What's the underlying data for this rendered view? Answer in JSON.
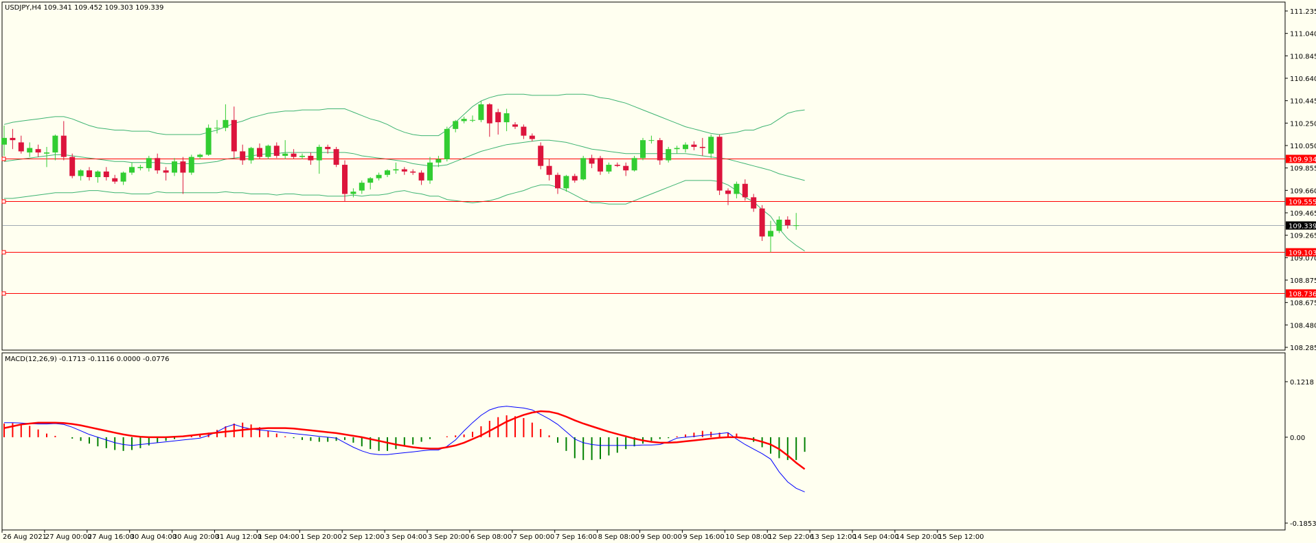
{
  "main_panel": {
    "header": "USDJPY,H4  109.341 109.452 109.303 109.339"
  },
  "macd_panel": {
    "header": "MACD(12,26,9) -0.1713 -0.1116 0.0000 -0.0776"
  },
  "price_axis_labels": [
    "111.235",
    "111.040",
    "110.845",
    "110.640",
    "110.445",
    "110.250",
    "110.050",
    "109.855",
    "109.660",
    "109.465",
    "109.265",
    "109.070",
    "108.875",
    "108.675",
    "108.480",
    "108.285"
  ],
  "macd_axis_labels": [
    "0.1218",
    "0.00",
    "-0.1853"
  ],
  "horizontal_levels": [
    {
      "label": "109.934",
      "value": 109.934,
      "color": "#ff0000"
    },
    {
      "label": "109.555",
      "value": 109.555,
      "color": "#ff0000"
    },
    {
      "label": "109.103",
      "value": 109.103,
      "color": "#ff0000"
    },
    {
      "label": "108.736",
      "value": 108.736,
      "color": "#ff0000"
    }
  ],
  "current_price": {
    "label": "109.339",
    "value": 109.339
  },
  "time_labels": [
    "26 Aug 2021",
    "27 Aug 00:00",
    "27 Aug 16:00",
    "30 Aug 04:00",
    "30 Aug 20:00",
    "31 Aug 12:00",
    "1 Sep 04:00",
    "1 Sep 20:00",
    "2 Sep 12:00",
    "3 Sep 04:00",
    "3 Sep 20:00",
    "6 Sep 08:00",
    "7 Sep 00:00",
    "7 Sep 16:00",
    "8 Sep 08:00",
    "9 Sep 00:00",
    "9 Sep 16:00",
    "10 Sep 08:00",
    "12 Sep 22:06",
    "13 Sep 12:00",
    "14 Sep 04:00",
    "14 Sep 20:00",
    "15 Sep 12:00"
  ],
  "colors": {
    "background": "#fffff0",
    "bull": "#32cd32",
    "bear": "#dc143c",
    "bands": "#3cb371",
    "macd_line": "#0000ff",
    "signal_line": "#ff0000",
    "hist_pos": "#ff0000",
    "hist_neg": "#008000",
    "level": "#ff0000"
  },
  "chart_data": {
    "type": "candlestick",
    "symbol": "USDJPY",
    "timeframe": "H4",
    "price_range": [
      108.25,
      111.29
    ],
    "macd_range": [
      -0.1853,
      0.1218
    ],
    "candles": [
      {
        "o": 110.06,
        "h": 110.23,
        "l": 109.96,
        "c": 110.12
      },
      {
        "o": 110.12,
        "h": 110.2,
        "l": 110.02,
        "c": 110.1
      },
      {
        "o": 110.08,
        "h": 110.14,
        "l": 109.98,
        "c": 110.0
      },
      {
        "o": 109.99,
        "h": 110.08,
        "l": 109.95,
        "c": 110.03
      },
      {
        "o": 110.02,
        "h": 110.06,
        "l": 109.95,
        "c": 109.99
      },
      {
        "o": 109.98,
        "h": 110.04,
        "l": 109.86,
        "c": 109.99
      },
      {
        "o": 109.99,
        "h": 110.15,
        "l": 109.92,
        "c": 110.14
      },
      {
        "o": 110.14,
        "h": 110.27,
        "l": 109.92,
        "c": 109.95
      },
      {
        "o": 109.95,
        "h": 109.98,
        "l": 109.76,
        "c": 109.78
      },
      {
        "o": 109.78,
        "h": 109.84,
        "l": 109.74,
        "c": 109.83
      },
      {
        "o": 109.83,
        "h": 109.86,
        "l": 109.74,
        "c": 109.77
      },
      {
        "o": 109.77,
        "h": 109.83,
        "l": 109.72,
        "c": 109.82
      },
      {
        "o": 109.82,
        "h": 109.86,
        "l": 109.74,
        "c": 109.77
      },
      {
        "o": 109.76,
        "h": 109.79,
        "l": 109.71,
        "c": 109.73
      },
      {
        "o": 109.73,
        "h": 109.82,
        "l": 109.7,
        "c": 109.81
      },
      {
        "o": 109.81,
        "h": 109.9,
        "l": 109.79,
        "c": 109.86
      },
      {
        "o": 109.85,
        "h": 109.88,
        "l": 109.83,
        "c": 109.86
      },
      {
        "o": 109.85,
        "h": 109.96,
        "l": 109.82,
        "c": 109.94
      },
      {
        "o": 109.94,
        "h": 109.98,
        "l": 109.8,
        "c": 109.83
      },
      {
        "o": 109.83,
        "h": 109.86,
        "l": 109.74,
        "c": 109.81
      },
      {
        "o": 109.81,
        "h": 109.94,
        "l": 109.78,
        "c": 109.91
      },
      {
        "o": 109.91,
        "h": 109.95,
        "l": 109.62,
        "c": 109.81
      },
      {
        "o": 109.81,
        "h": 109.97,
        "l": 109.79,
        "c": 109.95
      },
      {
        "o": 109.95,
        "h": 109.98,
        "l": 109.93,
        "c": 109.97
      },
      {
        "o": 109.97,
        "h": 110.24,
        "l": 109.96,
        "c": 110.21
      },
      {
        "o": 110.21,
        "h": 110.28,
        "l": 110.16,
        "c": 110.21
      },
      {
        "o": 110.21,
        "h": 110.42,
        "l": 110.18,
        "c": 110.28
      },
      {
        "o": 110.28,
        "h": 110.4,
        "l": 109.93,
        "c": 110.0
      },
      {
        "o": 110.0,
        "h": 110.06,
        "l": 109.88,
        "c": 109.92
      },
      {
        "o": 109.92,
        "h": 110.04,
        "l": 109.89,
        "c": 110.03
      },
      {
        "o": 110.03,
        "h": 110.07,
        "l": 109.93,
        "c": 109.95
      },
      {
        "o": 109.95,
        "h": 110.06,
        "l": 109.93,
        "c": 110.05
      },
      {
        "o": 110.05,
        "h": 110.08,
        "l": 109.94,
        "c": 109.96
      },
      {
        "o": 109.96,
        "h": 110.1,
        "l": 109.93,
        "c": 109.98
      },
      {
        "o": 109.98,
        "h": 110.02,
        "l": 109.93,
        "c": 109.95
      },
      {
        "o": 109.95,
        "h": 109.98,
        "l": 109.93,
        "c": 109.96
      },
      {
        "o": 109.96,
        "h": 109.99,
        "l": 109.88,
        "c": 109.92
      },
      {
        "o": 109.92,
        "h": 110.06,
        "l": 109.8,
        "c": 110.04
      },
      {
        "o": 110.04,
        "h": 110.06,
        "l": 109.98,
        "c": 110.02
      },
      {
        "o": 110.02,
        "h": 110.04,
        "l": 109.86,
        "c": 109.88
      },
      {
        "o": 109.88,
        "h": 109.92,
        "l": 109.55,
        "c": 109.62
      },
      {
        "o": 109.62,
        "h": 109.67,
        "l": 109.59,
        "c": 109.64
      },
      {
        "o": 109.65,
        "h": 109.74,
        "l": 109.62,
        "c": 109.72
      },
      {
        "o": 109.72,
        "h": 109.77,
        "l": 109.66,
        "c": 109.76
      },
      {
        "o": 109.76,
        "h": 109.81,
        "l": 109.74,
        "c": 109.79
      },
      {
        "o": 109.79,
        "h": 109.84,
        "l": 109.77,
        "c": 109.83
      },
      {
        "o": 109.83,
        "h": 109.9,
        "l": 109.8,
        "c": 109.84
      },
      {
        "o": 109.84,
        "h": 109.86,
        "l": 109.79,
        "c": 109.82
      },
      {
        "o": 109.82,
        "h": 109.84,
        "l": 109.79,
        "c": 109.81
      },
      {
        "o": 109.81,
        "h": 109.83,
        "l": 109.7,
        "c": 109.74
      },
      {
        "o": 109.74,
        "h": 109.95,
        "l": 109.71,
        "c": 109.9
      },
      {
        "o": 109.9,
        "h": 109.96,
        "l": 109.86,
        "c": 109.93
      },
      {
        "o": 109.93,
        "h": 110.22,
        "l": 109.91,
        "c": 110.2
      },
      {
        "o": 110.2,
        "h": 110.28,
        "l": 110.17,
        "c": 110.27
      },
      {
        "o": 110.27,
        "h": 110.31,
        "l": 110.25,
        "c": 110.29
      },
      {
        "o": 110.28,
        "h": 110.32,
        "l": 110.26,
        "c": 110.28
      },
      {
        "o": 110.28,
        "h": 110.45,
        "l": 110.26,
        "c": 110.42
      },
      {
        "o": 110.42,
        "h": 110.43,
        "l": 110.13,
        "c": 110.25
      },
      {
        "o": 110.35,
        "h": 110.38,
        "l": 110.15,
        "c": 110.26
      },
      {
        "o": 110.26,
        "h": 110.38,
        "l": 110.18,
        "c": 110.34
      },
      {
        "o": 110.24,
        "h": 110.26,
        "l": 110.2,
        "c": 110.22
      },
      {
        "o": 110.22,
        "h": 110.24,
        "l": 110.11,
        "c": 110.14
      },
      {
        "o": 110.14,
        "h": 110.16,
        "l": 110.09,
        "c": 110.11
      },
      {
        "o": 110.05,
        "h": 110.08,
        "l": 109.84,
        "c": 109.87
      },
      {
        "o": 109.87,
        "h": 109.93,
        "l": 109.74,
        "c": 109.79
      },
      {
        "o": 109.79,
        "h": 109.81,
        "l": 109.62,
        "c": 109.67
      },
      {
        "o": 109.67,
        "h": 109.79,
        "l": 109.64,
        "c": 109.78
      },
      {
        "o": 109.78,
        "h": 109.8,
        "l": 109.72,
        "c": 109.74
      },
      {
        "o": 109.75,
        "h": 109.96,
        "l": 109.74,
        "c": 109.94
      },
      {
        "o": 109.94,
        "h": 109.97,
        "l": 109.85,
        "c": 109.89
      },
      {
        "o": 109.94,
        "h": 109.96,
        "l": 109.79,
        "c": 109.82
      },
      {
        "o": 109.82,
        "h": 109.9,
        "l": 109.8,
        "c": 109.88
      },
      {
        "o": 109.88,
        "h": 109.9,
        "l": 109.86,
        "c": 109.87
      },
      {
        "o": 109.87,
        "h": 109.9,
        "l": 109.78,
        "c": 109.83
      },
      {
        "o": 109.83,
        "h": 109.96,
        "l": 109.82,
        "c": 109.94
      },
      {
        "o": 109.94,
        "h": 110.12,
        "l": 109.92,
        "c": 110.1
      },
      {
        "o": 110.1,
        "h": 110.14,
        "l": 110.07,
        "c": 110.1
      },
      {
        "o": 110.1,
        "h": 110.12,
        "l": 109.88,
        "c": 109.92
      },
      {
        "o": 109.92,
        "h": 110.04,
        "l": 109.9,
        "c": 110.02
      },
      {
        "o": 110.02,
        "h": 110.05,
        "l": 109.98,
        "c": 110.03
      },
      {
        "o": 110.02,
        "h": 110.08,
        "l": 109.99,
        "c": 110.06
      },
      {
        "o": 110.06,
        "h": 110.09,
        "l": 110.01,
        "c": 110.04
      },
      {
        "o": 110.04,
        "h": 110.12,
        "l": 109.96,
        "c": 110.03
      },
      {
        "o": 109.98,
        "h": 110.15,
        "l": 109.94,
        "c": 110.13
      },
      {
        "o": 110.13,
        "h": 110.15,
        "l": 109.61,
        "c": 109.65
      },
      {
        "o": 109.65,
        "h": 109.67,
        "l": 109.52,
        "c": 109.62
      },
      {
        "o": 109.62,
        "h": 109.73,
        "l": 109.58,
        "c": 109.71
      },
      {
        "o": 109.71,
        "h": 109.75,
        "l": 109.56,
        "c": 109.59
      },
      {
        "o": 109.59,
        "h": 109.62,
        "l": 109.46,
        "c": 109.49
      },
      {
        "o": 109.49,
        "h": 109.52,
        "l": 109.2,
        "c": 109.24
      },
      {
        "o": 109.24,
        "h": 109.38,
        "l": 109.1,
        "c": 109.29
      },
      {
        "o": 109.29,
        "h": 109.42,
        "l": 109.27,
        "c": 109.39
      },
      {
        "o": 109.39,
        "h": 109.42,
        "l": 109.31,
        "c": 109.34
      },
      {
        "o": 109.34,
        "h": 109.45,
        "l": 109.3,
        "c": 109.34
      }
    ],
    "bands_upper": [
      110.24,
      110.26,
      110.27,
      110.28,
      110.29,
      110.3,
      110.31,
      110.31,
      110.29,
      110.26,
      110.23,
      110.21,
      110.2,
      110.19,
      110.19,
      110.18,
      110.18,
      110.18,
      110.16,
      110.15,
      110.15,
      110.15,
      110.15,
      110.15,
      110.17,
      110.19,
      110.22,
      110.25,
      110.27,
      110.3,
      110.32,
      110.34,
      110.35,
      110.36,
      110.36,
      110.37,
      110.37,
      110.37,
      110.38,
      110.38,
      110.38,
      110.35,
      110.32,
      110.29,
      110.27,
      110.24,
      110.2,
      110.17,
      110.15,
      110.14,
      110.14,
      110.14,
      110.19,
      110.26,
      110.33,
      110.4,
      110.45,
      110.48,
      110.5,
      110.51,
      110.51,
      110.51,
      110.5,
      110.5,
      110.5,
      110.5,
      110.51,
      110.51,
      110.51,
      110.5,
      110.48,
      110.47,
      110.45,
      110.43,
      110.4,
      110.37,
      110.34,
      110.31,
      110.28,
      110.25,
      110.22,
      110.2,
      110.18,
      110.16,
      110.15,
      110.16,
      110.17,
      110.19,
      110.19,
      110.22,
      110.24,
      110.29,
      110.34,
      110.36,
      110.37
    ],
    "bands_mid": [
      109.91,
      109.92,
      109.93,
      109.94,
      109.95,
      109.96,
      109.97,
      109.97,
      109.96,
      109.95,
      109.94,
      109.93,
      109.92,
      109.91,
      109.91,
      109.9,
      109.9,
      109.9,
      109.9,
      109.89,
      109.89,
      109.89,
      109.89,
      109.89,
      109.9,
      109.91,
      109.93,
      109.94,
      109.95,
      109.96,
      109.97,
      109.98,
      109.98,
      109.99,
      109.99,
      109.99,
      109.99,
      109.99,
      109.99,
      109.99,
      109.99,
      109.98,
      109.96,
      109.95,
      109.94,
      109.93,
      109.92,
      109.91,
      109.89,
      109.88,
      109.87,
      109.87,
      109.88,
      109.91,
      109.94,
      109.97,
      110.0,
      110.02,
      110.04,
      110.06,
      110.07,
      110.08,
      110.09,
      110.1,
      110.1,
      110.09,
      110.08,
      110.06,
      110.04,
      110.02,
      110.01,
      110.0,
      109.99,
      109.98,
      109.98,
      109.98,
      109.98,
      109.98,
      109.98,
      109.98,
      109.98,
      109.97,
      109.96,
      109.95,
      109.94,
      109.93,
      109.91,
      109.89,
      109.87,
      109.85,
      109.83,
      109.8,
      109.78,
      109.76,
      109.74
    ],
    "bands_lower": [
      109.58,
      109.58,
      109.59,
      109.6,
      109.61,
      109.62,
      109.63,
      109.63,
      109.63,
      109.64,
      109.65,
      109.65,
      109.64,
      109.63,
      109.63,
      109.62,
      109.62,
      109.62,
      109.64,
      109.63,
      109.63,
      109.63,
      109.63,
      109.63,
      109.63,
      109.63,
      109.64,
      109.63,
      109.63,
      109.62,
      109.62,
      109.62,
      109.61,
      109.62,
      109.62,
      109.61,
      109.61,
      109.61,
      109.6,
      109.6,
      109.6,
      109.61,
      109.6,
      109.61,
      109.61,
      109.62,
      109.64,
      109.65,
      109.63,
      109.62,
      109.6,
      109.6,
      109.57,
      109.56,
      109.55,
      109.54,
      109.55,
      109.56,
      109.58,
      109.61,
      109.63,
      109.65,
      109.68,
      109.7,
      109.7,
      109.68,
      109.65,
      109.61,
      109.57,
      109.54,
      109.54,
      109.53,
      109.53,
      109.53,
      109.56,
      109.59,
      109.62,
      109.65,
      109.68,
      109.71,
      109.74,
      109.74,
      109.74,
      109.74,
      109.73,
      109.7,
      109.65,
      109.59,
      109.55,
      109.48,
      109.42,
      109.31,
      109.22,
      109.16,
      109.11
    ],
    "macd": [
      0.032,
      0.032,
      0.031,
      0.03,
      0.029,
      0.029,
      0.03,
      0.028,
      0.022,
      0.014,
      0.006,
      0.0,
      -0.006,
      -0.012,
      -0.016,
      -0.018,
      -0.016,
      -0.014,
      -0.012,
      -0.01,
      -0.008,
      -0.006,
      -0.004,
      -0.002,
      0.004,
      0.012,
      0.022,
      0.028,
      0.022,
      0.018,
      0.016,
      0.014,
      0.012,
      0.01,
      0.008,
      0.006,
      0.004,
      0.002,
      0.0,
      -0.002,
      -0.012,
      -0.022,
      -0.03,
      -0.036,
      -0.038,
      -0.038,
      -0.036,
      -0.034,
      -0.032,
      -0.03,
      -0.028,
      -0.028,
      -0.02,
      -0.006,
      0.014,
      0.032,
      0.048,
      0.06,
      0.066,
      0.068,
      0.066,
      0.064,
      0.06,
      0.05,
      0.04,
      0.028,
      0.012,
      -0.004,
      -0.012,
      -0.016,
      -0.018,
      -0.018,
      -0.018,
      -0.018,
      -0.018,
      -0.017,
      -0.017,
      -0.016,
      -0.01,
      -0.002,
      0.0,
      0.002,
      0.004,
      0.006,
      0.008,
      0.01,
      -0.004,
      -0.016,
      -0.026,
      -0.036,
      -0.048,
      -0.076,
      -0.098,
      -0.112,
      -0.12
    ],
    "signal": [
      0.02,
      0.024,
      0.028,
      0.03,
      0.032,
      0.032,
      0.032,
      0.031,
      0.029,
      0.026,
      0.022,
      0.018,
      0.014,
      0.01,
      0.006,
      0.003,
      0.001,
      0.0,
      0.0,
      0.0,
      0.001,
      0.002,
      0.004,
      0.006,
      0.008,
      0.01,
      0.012,
      0.014,
      0.016,
      0.018,
      0.019,
      0.02,
      0.02,
      0.02,
      0.019,
      0.017,
      0.015,
      0.013,
      0.011,
      0.009,
      0.006,
      0.003,
      0.0,
      -0.004,
      -0.008,
      -0.012,
      -0.016,
      -0.019,
      -0.022,
      -0.024,
      -0.025,
      -0.025,
      -0.022,
      -0.018,
      -0.012,
      -0.004,
      0.004,
      0.014,
      0.024,
      0.034,
      0.042,
      0.049,
      0.054,
      0.057,
      0.056,
      0.052,
      0.045,
      0.037,
      0.03,
      0.024,
      0.018,
      0.012,
      0.007,
      0.002,
      -0.003,
      -0.007,
      -0.01,
      -0.012,
      -0.012,
      -0.011,
      -0.009,
      -0.007,
      -0.005,
      -0.003,
      -0.001,
      0.0,
      0.0,
      -0.002,
      -0.005,
      -0.01,
      -0.016,
      -0.026,
      -0.04,
      -0.056,
      -0.07
    ],
    "histogram": [
      0.03,
      0.031,
      0.029,
      0.025,
      0.017,
      0.008,
      0.003,
      0.0,
      -0.003,
      -0.008,
      -0.014,
      -0.02,
      -0.024,
      -0.028,
      -0.03,
      -0.028,
      -0.024,
      -0.018,
      -0.012,
      -0.008,
      -0.004,
      0.0,
      0.003,
      0.006,
      0.01,
      0.016,
      0.024,
      0.03,
      0.032,
      0.028,
      0.022,
      0.014,
      0.008,
      0.002,
      -0.002,
      -0.006,
      -0.008,
      -0.01,
      -0.01,
      -0.008,
      -0.006,
      -0.012,
      -0.02,
      -0.026,
      -0.03,
      -0.03,
      -0.026,
      -0.02,
      -0.016,
      -0.01,
      -0.004,
      0.0,
      0.002,
      0.004,
      0.006,
      0.012,
      0.024,
      0.036,
      0.044,
      0.048,
      0.046,
      0.042,
      0.032,
      0.018,
      0.004,
      -0.012,
      -0.03,
      -0.046,
      -0.05,
      -0.05,
      -0.048,
      -0.04,
      -0.034,
      -0.026,
      -0.02,
      -0.014,
      -0.008,
      -0.004,
      -0.002,
      0.002,
      0.006,
      0.01,
      0.014,
      0.012,
      0.01,
      0.01,
      0.008,
      -0.004,
      -0.01,
      -0.022,
      -0.036,
      -0.046,
      -0.05,
      -0.05,
      -0.032
    ]
  }
}
